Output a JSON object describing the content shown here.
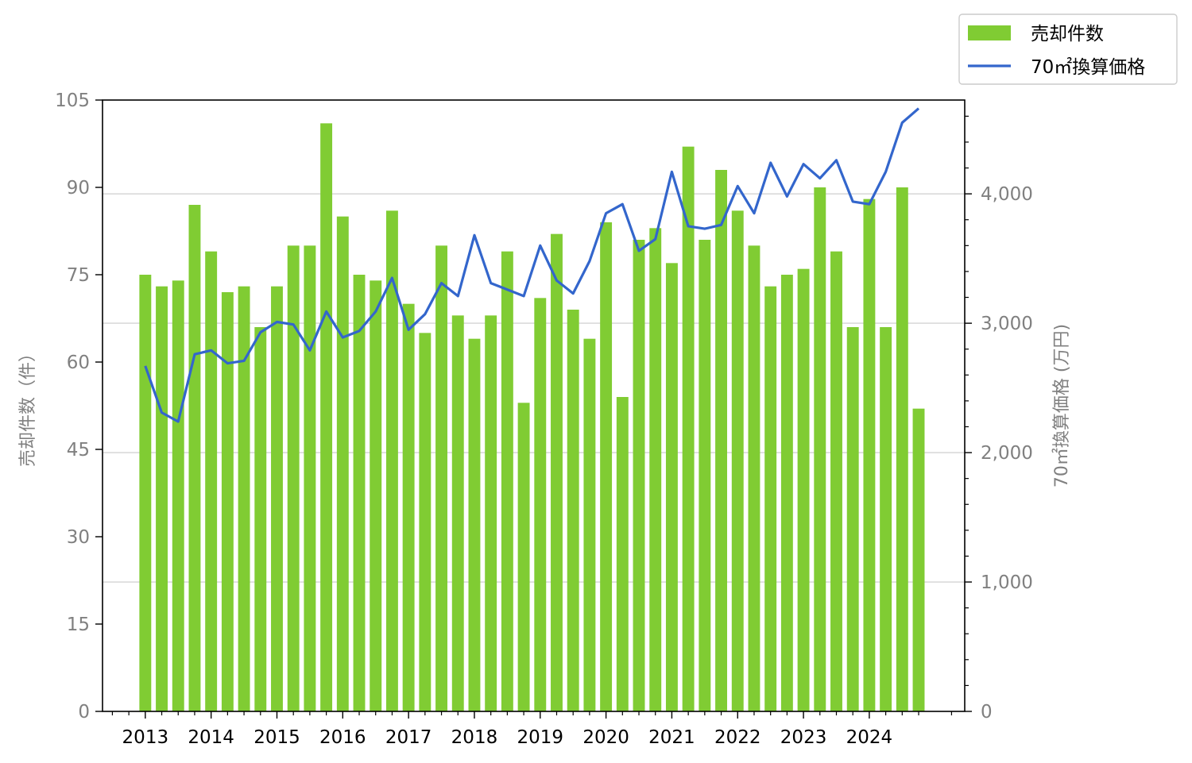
{
  "chart_data": {
    "type": "bar+line",
    "title": "",
    "xlabel": "",
    "ylabel_left": "売却件数（件）",
    "ylabel_right": "70㎡換算価格 (万円)",
    "xlim": [
      2012.35,
      2025.45
    ],
    "ylim_left": [
      0,
      105
    ],
    "ylim_right": [
      0,
      4725
    ],
    "x_ticks": [
      2013,
      2014,
      2015,
      2016,
      2017,
      2018,
      2019,
      2020,
      2021,
      2022,
      2023,
      2024
    ],
    "x_tick_labels": [
      "2013",
      "2014",
      "2015",
      "2016",
      "2017",
      "2018",
      "2019",
      "2020",
      "2021",
      "2022",
      "2023",
      "2024"
    ],
    "y_ticks_left": [
      0,
      15,
      30,
      45,
      60,
      75,
      90,
      105
    ],
    "y_tick_labels_left": [
      "0",
      "15",
      "30",
      "45",
      "60",
      "75",
      "90",
      "105"
    ],
    "y_ticks_right": [
      0,
      1000,
      2000,
      3000,
      4000
    ],
    "y_tick_labels_right": [
      "0",
      "1,000",
      "2,000",
      "3,000",
      "4,000"
    ],
    "grid": "horizontal at right-axis major ticks",
    "legend_position": "top-right, outside plot",
    "x": [
      2013.0,
      2013.25,
      2013.5,
      2013.75,
      2014.0,
      2014.25,
      2014.5,
      2014.75,
      2015.0,
      2015.25,
      2015.5,
      2015.75,
      2016.0,
      2016.25,
      2016.5,
      2016.75,
      2017.0,
      2017.25,
      2017.5,
      2017.75,
      2018.0,
      2018.25,
      2018.5,
      2018.75,
      2019.0,
      2019.25,
      2019.5,
      2019.75,
      2020.0,
      2020.25,
      2020.5,
      2020.75,
      2021.0,
      2021.25,
      2021.5,
      2021.75,
      2022.0,
      2022.25,
      2022.5,
      2022.75,
      2023.0,
      2023.25,
      2023.5,
      2023.75,
      2024.0,
      2024.25,
      2024.5,
      2024.75
    ],
    "series": [
      {
        "name": "売却件数",
        "type": "bar",
        "axis": "left",
        "color": "#80cc33",
        "values": [
          75,
          73,
          74,
          87,
          79,
          72,
          73,
          66,
          73,
          80,
          80,
          101,
          85,
          75,
          74,
          86,
          70,
          65,
          80,
          68,
          64,
          68,
          79,
          53,
          71,
          82,
          69,
          64,
          84,
          54,
          81,
          83,
          77,
          97,
          81,
          93,
          86,
          80,
          73,
          75,
          76,
          90,
          79,
          66,
          88,
          66,
          90,
          52
        ]
      },
      {
        "name": "70㎡換算価格",
        "type": "line",
        "axis": "right",
        "color": "#3366cc",
        "values": [
          2670,
          2310,
          2240,
          2760,
          2790,
          2690,
          2710,
          2930,
          3010,
          2990,
          2790,
          3090,
          2890,
          2940,
          3090,
          3350,
          2950,
          3070,
          3310,
          3210,
          3680,
          3310,
          3260,
          3210,
          3600,
          3330,
          3230,
          3480,
          3850,
          3920,
          3560,
          3650,
          4170,
          3750,
          3730,
          3760,
          4060,
          3850,
          4240,
          3980,
          4230,
          4120,
          4260,
          3940,
          3920,
          4170,
          4550,
          4660
        ]
      }
    ]
  }
}
